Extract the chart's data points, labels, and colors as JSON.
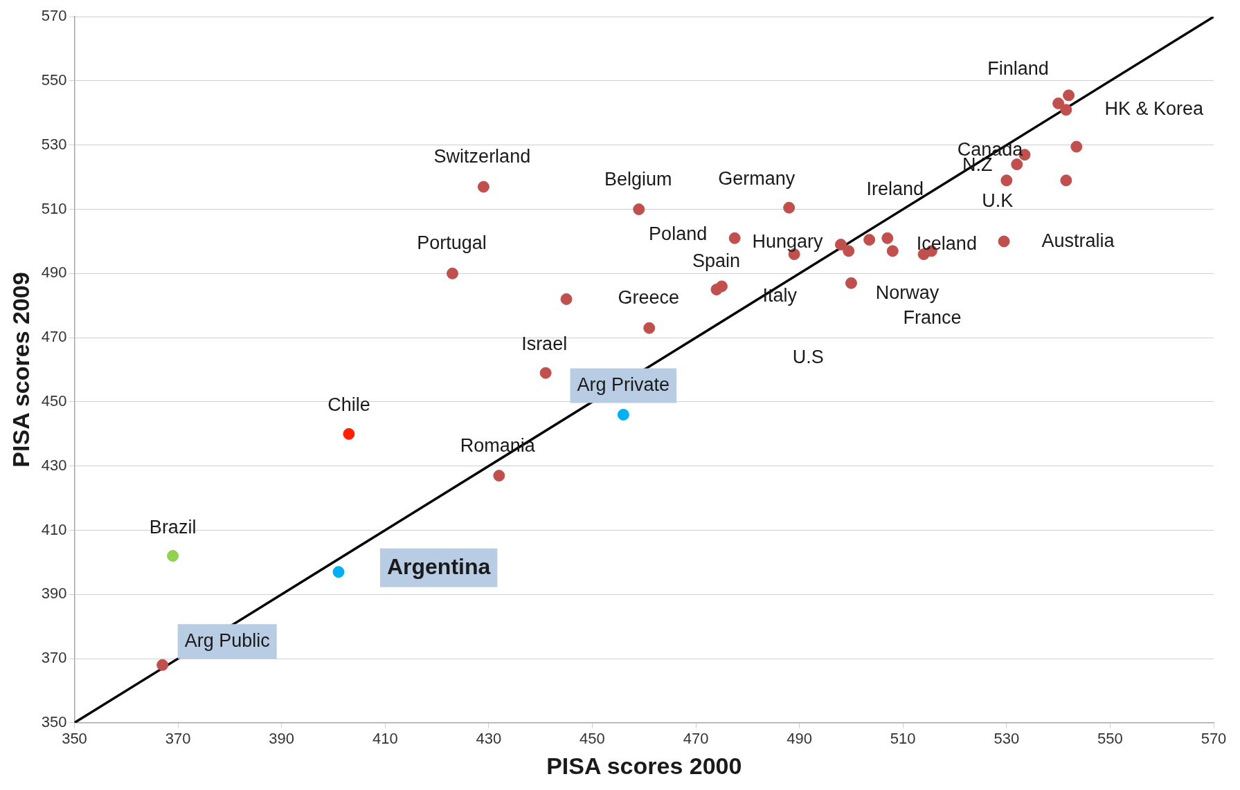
{
  "chart_data": {
    "type": "scatter",
    "xlabel": "PISA scores 2000",
    "ylabel": "PISA scores 2009",
    "xlim": [
      350,
      570
    ],
    "xticks": [
      350,
      370,
      390,
      410,
      430,
      450,
      470,
      490,
      510,
      530,
      550,
      570
    ],
    "ylim": [
      350,
      570
    ],
    "yticks": [
      350,
      370,
      390,
      410,
      430,
      450,
      470,
      490,
      510,
      530,
      550,
      570
    ],
    "grid": "y",
    "legend": false,
    "marker": "circle",
    "series": [
      {
        "type": "scatter",
        "x": [
          369,
          403,
          432,
          423,
          429,
          445,
          441,
          459,
          461,
          474,
          475,
          477.5,
          488,
          489,
          498,
          499.5,
          503.5,
          500,
          507,
          508,
          514,
          515.5,
          529.5,
          530,
          532,
          533.5,
          541.5,
          543.5,
          540,
          542,
          541.5
        ],
        "values": [
          402,
          440,
          427,
          490,
          517,
          482,
          459,
          510,
          473,
          485,
          486,
          501,
          510.5,
          496,
          499,
          497,
          500.5,
          487,
          501,
          497,
          496,
          497,
          500,
          519,
          524,
          527,
          519,
          529.5,
          543,
          545.5,
          541
        ],
        "colors": [
          "#92d050",
          "#ff2000",
          "#c0504d",
          "#c0504d",
          "#c0504d",
          "#c0504d",
          "#c0504d",
          "#c0504d",
          "#c0504d",
          "#c0504d",
          "#c0504d",
          "#c0504d",
          "#c0504d",
          "#c0504d",
          "#c0504d",
          "#c0504d",
          "#c0504d",
          "#c0504d",
          "#c0504d",
          "#c0504d",
          "#c0504d",
          "#c0504d",
          "#c0504d",
          "#c0504d",
          "#c0504d",
          "#c0504d",
          "#c0504d",
          "#c0504d",
          "#c0504d",
          "#c0504d",
          "#c0504d"
        ]
      },
      {
        "type": "scatter",
        "name": "Arg Private",
        "color": "#00b0f0",
        "x": [
          456
        ],
        "values": [
          446
        ]
      },
      {
        "type": "scatter",
        "name": "Argentina",
        "color": "#00b0f0",
        "x": [
          401
        ],
        "values": [
          397
        ]
      },
      {
        "type": "scatter",
        "name": "Arg Public",
        "color": "#c0504d",
        "x": [
          367
        ],
        "values": [
          368
        ]
      },
      {
        "type": "line",
        "color": "#000000",
        "marker": "none",
        "x": [
          350,
          570
        ],
        "values": [
          350,
          570
        ]
      }
    ],
    "annotations": [
      {
        "text": "Switzerland",
        "x": 429,
        "y": 517
      },
      {
        "text": "Belgium",
        "x": 459,
        "y": 510
      },
      {
        "text": "Germany",
        "x": 488,
        "y": 510.5
      },
      {
        "text": "Ireland",
        "x": 507,
        "y": 501
      },
      {
        "text": "Finland",
        "x": 542,
        "y": 545.5
      },
      {
        "text": "HK & Korea",
        "x": 541.5,
        "y": 541
      },
      {
        "text": "Canada",
        "x": 533.5,
        "y": 527
      },
      {
        "text": "N.Z",
        "x": 532,
        "y": 524
      },
      {
        "text": "U.K",
        "x": 530,
        "y": 519
      },
      {
        "text": "Australia",
        "x": 529.5,
        "y": 500
      },
      {
        "text": "Iceland",
        "x": 515.5,
        "y": 497
      },
      {
        "text": "Hungary",
        "x": 498,
        "y": 499
      },
      {
        "text": "Poland",
        "x": 477.5,
        "y": 501
      },
      {
        "text": "Spain",
        "x": 475,
        "y": 486
      },
      {
        "text": "Portugal",
        "x": 423,
        "y": 490
      },
      {
        "text": "Greece",
        "x": 461,
        "y": 473
      },
      {
        "text": "Italy",
        "x": 489,
        "y": 496
      },
      {
        "text": "Norway",
        "x": 500,
        "y": 487
      },
      "France",
      "U.S",
      {
        "text": "Israel",
        "x": 441,
        "y": 459
      },
      {
        "text": "Chile",
        "x": 403,
        "y": 440
      },
      {
        "text": "Romania",
        "x": 432,
        "y": 427
      },
      {
        "text": "Brazil",
        "x": 369,
        "y": 402
      }
    ]
  }
}
